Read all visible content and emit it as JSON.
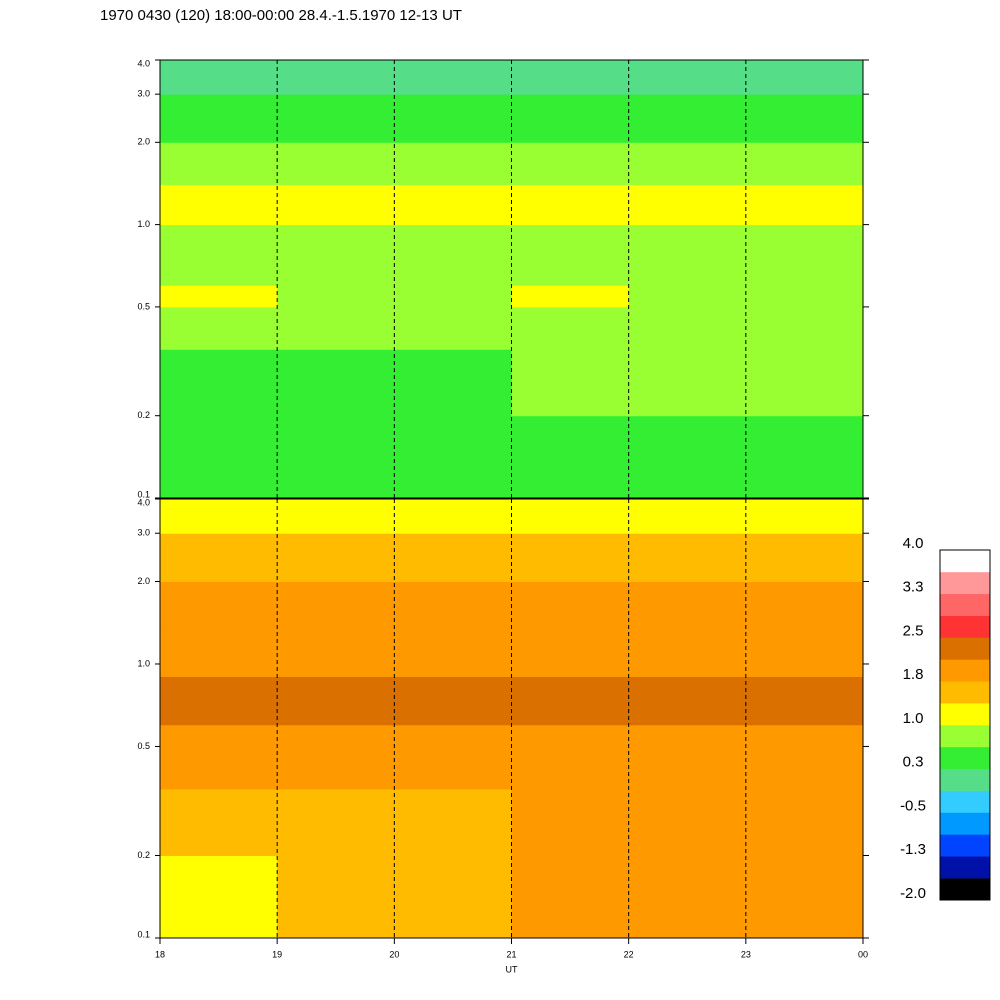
{
  "title": "1970 0430 (120) 18:00-00:00 28.4.-1.5.1970  12-13 UT",
  "colorbar": {
    "lim": [
      -2.0,
      4.0
    ],
    "colors": [
      "#000000",
      "#0011aa",
      "#0044ff",
      "#0099ff",
      "#33ccff",
      "#55dd88",
      "#33ee33",
      "#99ff33",
      "#ffff00",
      "#ffbb00",
      "#ff9900",
      "#d97000",
      "#ff3333",
      "#ff6666",
      "#ff9999",
      "#ffffff"
    ],
    "ticks": [
      {
        "value": -2.0,
        "label": "-2.0"
      },
      {
        "value": -1.25,
        "label": "-1.3"
      },
      {
        "value": -0.5,
        "label": "-0.5"
      },
      {
        "value": 0.25,
        "label": "0.3"
      },
      {
        "value": 1.0,
        "label": "1.0"
      },
      {
        "value": 1.75,
        "label": "1.8"
      },
      {
        "value": 2.5,
        "label": "2.5"
      },
      {
        "value": 3.25,
        "label": "3.3"
      },
      {
        "value": 4.0,
        "label": "4.0"
      }
    ]
  },
  "chart_data": [
    {
      "type": "heatmap",
      "log_y": true,
      "xlim": [
        18,
        24
      ],
      "xticks": [
        18,
        19,
        20,
        21,
        22,
        23,
        {
          "value": 24,
          "label": "00"
        }
      ],
      "ylim": [
        0.1,
        4.0
      ],
      "yticks": [
        0.1,
        0.2,
        0.5,
        {
          "value": 1.0,
          "label": "1.0"
        },
        {
          "value": 2.0,
          "label": "2.0"
        },
        {
          "value": 3.0,
          "label": "3.0"
        },
        {
          "value": 4.0,
          "label": "4.0"
        }
      ],
      "x_edges": [
        18,
        19,
        20,
        21,
        22,
        23,
        24
      ],
      "y_edges": [
        0.1,
        0.2,
        0.35,
        0.5,
        0.6,
        0.9,
        1.0,
        1.4,
        2.0,
        3.0,
        4.0
      ],
      "grid": true,
      "values": [
        [
          0.4,
          0.4,
          0.35,
          0.5,
          0.5,
          0.5
        ],
        [
          0.5,
          0.45,
          0.45,
          0.7,
          0.7,
          0.75
        ],
        [
          0.8,
          0.7,
          0.7,
          0.8,
          0.85,
          0.85
        ],
        [
          1.1,
          0.9,
          0.9,
          1.0,
          0.9,
          0.9
        ],
        [
          0.9,
          0.85,
          0.9,
          0.95,
          0.9,
          0.9
        ],
        [
          0.9,
          0.85,
          0.9,
          0.95,
          0.9,
          0.9
        ],
        [
          1.1,
          1.0,
          1.0,
          1.1,
          1.0,
          1.0
        ],
        [
          0.8,
          0.75,
          0.75,
          0.8,
          0.75,
          0.75
        ],
        [
          0.6,
          0.55,
          0.55,
          0.6,
          0.55,
          0.55
        ],
        [
          0.2,
          0.2,
          0.2,
          0.2,
          0.2,
          0.2
        ]
      ]
    },
    {
      "type": "heatmap",
      "log_y": true,
      "xlabel": "UT",
      "xlim": [
        18,
        24
      ],
      "xticks": [
        18,
        19,
        20,
        21,
        22,
        23,
        {
          "value": 24,
          "label": "00"
        }
      ],
      "ylim": [
        0.1,
        4.0
      ],
      "yticks": [
        0.1,
        0.2,
        0.5,
        {
          "value": 1.0,
          "label": "1.0"
        },
        {
          "value": 2.0,
          "label": "2.0"
        },
        {
          "value": 3.0,
          "label": "3.0"
        },
        {
          "value": 4.0,
          "label": "4.0"
        }
      ],
      "x_edges": [
        18,
        19,
        20,
        21,
        22,
        23,
        24
      ],
      "y_edges": [
        0.1,
        0.2,
        0.35,
        0.5,
        0.6,
        0.9,
        1.0,
        1.4,
        2.0,
        3.0,
        4.0
      ],
      "grid": true,
      "values": [
        [
          1.3,
          1.4,
          1.5,
          1.8,
          1.8,
          1.9
        ],
        [
          1.5,
          1.5,
          1.6,
          1.8,
          1.9,
          1.9
        ],
        [
          1.8,
          1.8,
          1.8,
          1.9,
          2.0,
          2.0
        ],
        [
          2.0,
          1.9,
          2.0,
          2.0,
          2.0,
          2.1
        ],
        [
          2.3,
          2.3,
          2.3,
          2.3,
          2.3,
          2.3
        ],
        [
          1.9,
          1.9,
          1.9,
          2.0,
          1.9,
          1.9
        ],
        [
          1.9,
          1.9,
          1.9,
          1.9,
          1.9,
          1.9
        ],
        [
          1.8,
          1.8,
          1.8,
          1.8,
          1.8,
          1.8
        ],
        [
          1.6,
          1.7,
          1.7,
          1.7,
          1.7,
          1.7
        ],
        [
          1.2,
          1.2,
          1.2,
          1.2,
          1.2,
          1.2
        ]
      ]
    }
  ]
}
